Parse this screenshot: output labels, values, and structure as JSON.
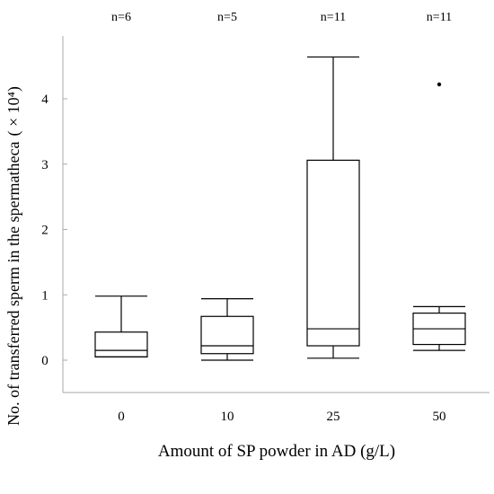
{
  "chart_data": {
    "type": "box",
    "xlabel": "Amount of SP powder in AD (g/L)",
    "ylabel": "No. of transferred sperm in the spermatheca",
    "ylabel_unit": "( × 10⁴)",
    "categories": [
      "0",
      "10",
      "25",
      "50"
    ],
    "n_labels": [
      "n=6",
      "n=5",
      "n=11",
      "n=11"
    ],
    "yticks": [
      "0",
      "1",
      "2",
      "3",
      "4"
    ],
    "ylim": [
      -0.5,
      4.95
    ],
    "grid": false,
    "legend": "none",
    "boxes": [
      {
        "category": "0",
        "whisker_low": 0.05,
        "q1": 0.05,
        "median": 0.15,
        "q3": 0.43,
        "whisker_high": 0.98,
        "outliers": []
      },
      {
        "category": "10",
        "whisker_low": 0.0,
        "q1": 0.1,
        "median": 0.22,
        "q3": 0.67,
        "whisker_high": 0.94,
        "outliers": []
      },
      {
        "category": "25",
        "whisker_low": 0.03,
        "q1": 0.22,
        "median": 0.48,
        "q3": 3.06,
        "whisker_high": 4.64,
        "outliers": []
      },
      {
        "category": "50",
        "whisker_low": 0.15,
        "q1": 0.24,
        "median": 0.48,
        "q3": 0.72,
        "whisker_high": 0.82,
        "outliers": [
          4.22
        ]
      }
    ]
  }
}
